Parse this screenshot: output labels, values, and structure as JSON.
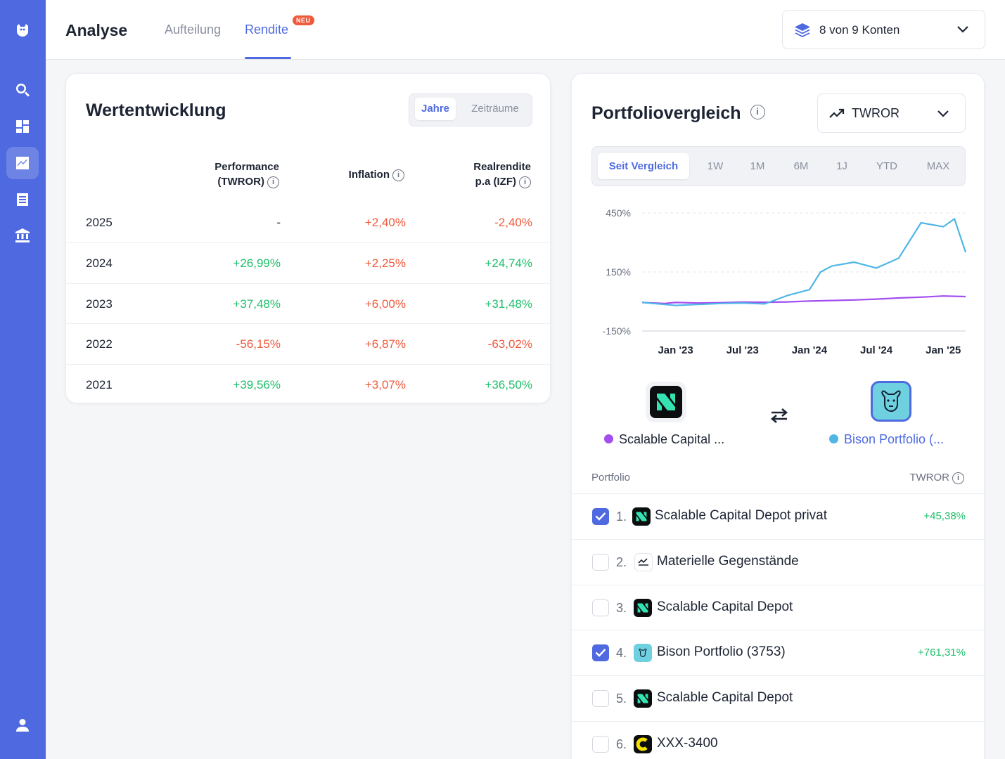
{
  "header": {
    "title": "Analyse",
    "tabs": [
      {
        "label": "Aufteilung"
      },
      {
        "label": "Rendite"
      }
    ],
    "new_badge": "NEU",
    "accounts_label": "8 von 9 Konten"
  },
  "sidebar": {
    "items": [
      "logo-icon",
      "search-icon",
      "dashboard-icon",
      "chart-icon",
      "list-icon",
      "bank-icon",
      "user-icon"
    ],
    "active": "chart-icon"
  },
  "wertentwicklung": {
    "title": "Wertentwicklung",
    "toggle": [
      "Jahre",
      "Zeiträume"
    ],
    "col_performance_1": "Performance",
    "col_performance_2": "(TWROR)",
    "col_inflation": "Inflation",
    "col_real_1": "Realrendite",
    "col_real_2": "p.a (IZF)",
    "rows": [
      {
        "year": "2025",
        "perf": "-",
        "inflation": "+2,40%",
        "real": "-2,40%"
      },
      {
        "year": "2024",
        "perf": "+26,99%",
        "inflation": "+2,25%",
        "real": "+24,74%"
      },
      {
        "year": "2023",
        "perf": "+37,48%",
        "inflation": "+6,00%",
        "real": "+31,48%"
      },
      {
        "year": "2022",
        "perf": "-56,15%",
        "inflation": "+6,87%",
        "real": "-63,02%"
      },
      {
        "year": "2021",
        "perf": "+39,56%",
        "inflation": "+3,07%",
        "real": "+36,50%"
      }
    ]
  },
  "portfolio": {
    "title": "Portfoliovergleich",
    "metric_label": "TWROR",
    "ranges": [
      "Seit Vergleich",
      "1W",
      "1M",
      "6M",
      "1J",
      "YTD",
      "MAX"
    ],
    "compare_left": "Scalable Capital ...",
    "compare_right": "Bison Portfolio (...",
    "list_header_left": "Portfolio",
    "list_header_right": "TWROR",
    "items": [
      {
        "num": "1.",
        "name": "Scalable Capital Depot privat",
        "value": "+45,38%",
        "checked": true,
        "logo": "scalable"
      },
      {
        "num": "2.",
        "name": "Materielle Gegenstände",
        "value": "",
        "checked": false,
        "logo": "chart"
      },
      {
        "num": "3.",
        "name": "Scalable Capital Depot",
        "value": "",
        "checked": false,
        "logo": "scalable"
      },
      {
        "num": "4.",
        "name": "Bison Portfolio (3753)",
        "value": "+761,31%",
        "checked": true,
        "logo": "bison"
      },
      {
        "num": "5.",
        "name": "Scalable Capital Depot",
        "value": "",
        "checked": false,
        "logo": "scalable"
      },
      {
        "num": "6.",
        "name": "XXX-3400",
        "value": "",
        "checked": false,
        "logo": "c"
      }
    ]
  },
  "colors": {
    "accent": "#4f6ae0",
    "positive": "#1fbf6b",
    "negative": "#ef5a3c",
    "series_scalable": "#a34df0",
    "series_bison": "#4fb6e6"
  },
  "chart_data": {
    "type": "line",
    "y_ticks": [
      "450%",
      "150%",
      "-150%"
    ],
    "x_ticks": [
      "Jan '23",
      "Jul '23",
      "Jan '24",
      "Jul '24",
      "Jan '25"
    ],
    "ylim": [
      -150,
      450
    ],
    "series": [
      {
        "name": "Scalable Capital ...",
        "color": "#a34df0",
        "x": [
          "2022-10",
          "2022-12",
          "2023-01",
          "2023-03",
          "2023-05",
          "2023-07",
          "2023-09",
          "2023-11",
          "2024-01",
          "2024-03",
          "2024-05",
          "2024-07",
          "2024-09",
          "2024-11",
          "2025-01",
          "2025-03"
        ],
        "y": [
          -5,
          -10,
          -5,
          -8,
          -6,
          -3,
          -4,
          -2,
          2,
          5,
          8,
          12,
          18,
          22,
          28,
          25
        ]
      },
      {
        "name": "Bison Portfolio (...",
        "color": "#4fb6e6",
        "x": [
          "2022-10",
          "2022-12",
          "2023-01",
          "2023-03",
          "2023-05",
          "2023-07",
          "2023-09",
          "2023-11",
          "2024-01",
          "2024-02",
          "2024-03",
          "2024-05",
          "2024-07",
          "2024-09",
          "2024-11",
          "2025-01",
          "2025-02",
          "2025-03"
        ],
        "y": [
          -5,
          -15,
          -20,
          -15,
          -10,
          -8,
          -12,
          30,
          60,
          150,
          180,
          200,
          170,
          220,
          400,
          380,
          420,
          250
        ]
      }
    ]
  }
}
